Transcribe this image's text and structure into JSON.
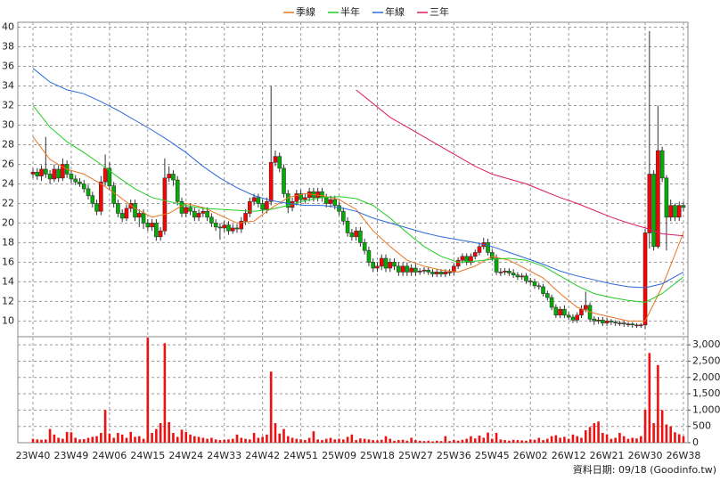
{
  "chart_data": {
    "type": "candlestick",
    "legend": "top",
    "grid": true,
    "up_color": "#ff0000",
    "down_color": "#00b000",
    "categories": [
      "23W40",
      null,
      null,
      null,
      null,
      null,
      null,
      null,
      null,
      "23W49",
      null,
      null,
      null,
      null,
      null,
      null,
      null,
      null,
      "24W06",
      null,
      null,
      null,
      null,
      null,
      null,
      null,
      null,
      "24W15",
      null,
      null,
      null,
      null,
      null,
      null,
      null,
      null,
      "24W24",
      null,
      null,
      null,
      null,
      null,
      null,
      null,
      null,
      "24W33",
      null,
      null,
      null,
      null,
      null,
      null,
      null,
      null,
      "24W42",
      null,
      null,
      null,
      null,
      null,
      null,
      null,
      null,
      "24W51",
      null,
      null,
      null,
      null,
      null,
      null,
      null,
      null,
      "25W09",
      null,
      null,
      null,
      null,
      null,
      null,
      null,
      null,
      "25W18",
      null,
      null,
      null,
      null,
      null,
      null,
      null,
      null,
      "25W27",
      null,
      null,
      null,
      null,
      null,
      null,
      null,
      null,
      "25W36",
      null,
      null,
      null,
      null,
      null,
      null,
      null,
      null,
      "25W45",
      null,
      null,
      null,
      null,
      null,
      null,
      null,
      null,
      "26W02",
      null,
      null,
      null,
      null,
      null,
      null,
      null,
      null,
      "26W12",
      null,
      null,
      null,
      null,
      null,
      null,
      null,
      null,
      "26W21",
      null,
      null,
      null,
      null,
      null,
      null,
      null,
      null,
      "26W30",
      null,
      null,
      null,
      null,
      null,
      null,
      null,
      null,
      "26W38"
    ],
    "open": [
      25.0,
      25.2,
      24.8,
      25.5,
      25.0,
      24.5,
      25.5,
      24.6,
      26.0,
      25.0,
      24.5,
      24.2,
      24.0,
      23.5,
      22.8,
      22.0,
      21.2,
      24.2,
      25.6,
      23.8,
      22.0,
      21.0,
      20.5,
      21.5,
      22.0,
      20.6,
      21.0,
      20.0,
      19.6,
      20.0,
      18.6,
      19.2,
      24.6,
      25.0,
      24.4,
      22.2,
      21.0,
      21.6,
      21.2,
      20.6,
      21.0,
      21.2,
      20.6,
      20.0,
      19.6,
      19.5,
      19.8,
      19.2,
      19.5,
      19.4,
      20.2,
      21.0,
      22.2,
      22.6,
      22.0,
      21.4,
      22.2,
      26.2,
      26.8,
      25.6,
      23.0,
      21.6,
      22.2,
      23.0,
      22.4,
      22.6,
      23.2,
      22.6,
      23.2,
      22.6,
      22.0,
      22.4,
      21.8,
      21.2,
      20.2,
      19.0,
      18.6,
      19.2,
      18.0,
      17.2,
      16.0,
      15.4,
      15.6,
      16.4,
      15.4,
      16.0,
      15.6,
      15.0,
      15.6,
      15.0,
      15.4,
      15.0,
      15.1,
      15.2,
      15.0,
      14.8,
      15.0,
      14.8,
      15.0,
      15.0,
      15.6,
      16.2,
      16.6,
      16.0,
      16.6,
      17.0,
      17.6,
      18.0,
      17.0,
      16.4,
      15.0,
      15.0,
      15.1,
      14.9,
      14.7,
      14.5,
      14.6,
      14.1,
      14.0,
      13.6,
      13.5,
      12.8,
      12.4,
      11.4,
      10.6,
      11.2,
      10.6,
      10.4,
      10.1,
      10.6,
      11.2,
      11.6,
      10.2,
      10.0,
      10.1,
      9.8,
      10.0,
      9.9,
      9.8,
      9.8,
      9.7,
      9.7,
      9.6,
      9.6,
      9.6,
      19.0,
      25.0,
      17.6,
      27.4,
      24.6,
      20.6,
      21.8,
      20.6,
      21.8
    ],
    "high": [
      25.6,
      25.6,
      25.9,
      28.8,
      25.4,
      26.0,
      25.9,
      26.6,
      26.4,
      25.4,
      24.9,
      24.6,
      24.4,
      23.9,
      23.2,
      22.4,
      24.8,
      27.0,
      26.2,
      24.2,
      22.4,
      21.4,
      21.9,
      22.4,
      22.4,
      21.4,
      21.4,
      20.4,
      20.4,
      20.4,
      19.6,
      26.6,
      25.8,
      25.4,
      24.8,
      22.6,
      21.9,
      22.0,
      21.6,
      21.4,
      21.6,
      21.6,
      21.0,
      20.4,
      20.0,
      20.2,
      20.2,
      19.9,
      19.9,
      20.6,
      21.4,
      22.6,
      23.0,
      23.0,
      22.4,
      22.6,
      34.0,
      27.4,
      27.2,
      26.0,
      23.4,
      22.6,
      23.4,
      23.4,
      23.0,
      23.6,
      23.6,
      23.6,
      23.6,
      23.0,
      22.8,
      22.8,
      22.2,
      21.6,
      20.6,
      19.4,
      19.6,
      19.6,
      18.4,
      17.6,
      16.4,
      16.0,
      16.8,
      16.8,
      16.4,
      16.4,
      16.0,
      16.0,
      16.0,
      15.8,
      15.8,
      15.4,
      15.5,
      15.5,
      15.3,
      15.3,
      15.3,
      15.3,
      15.3,
      15.9,
      16.5,
      16.9,
      16.9,
      16.9,
      17.3,
      17.9,
      18.5,
      18.4,
      17.3,
      16.8,
      15.4,
      15.4,
      15.4,
      15.3,
      15.0,
      14.9,
      14.9,
      14.4,
      14.3,
      13.9,
      13.8,
      13.1,
      12.7,
      11.7,
      11.5,
      11.6,
      10.9,
      10.7,
      10.9,
      11.6,
      13.0,
      11.9,
      10.5,
      10.4,
      10.4,
      10.3,
      10.2,
      10.1,
      10.0,
      10.0,
      9.9,
      9.9,
      9.8,
      9.8,
      19.4,
      39.6,
      25.4,
      32.0,
      27.8,
      24.9,
      22.4,
      22.0,
      22.2,
      22.2
    ],
    "low": [
      24.6,
      24.4,
      24.3,
      24.6,
      24.0,
      24.2,
      24.2,
      24.3,
      24.6,
      24.1,
      23.9,
      23.7,
      23.1,
      22.4,
      21.6,
      20.8,
      20.8,
      23.8,
      23.4,
      21.6,
      20.6,
      20.1,
      20.2,
      21.1,
      20.2,
      19.6,
      19.4,
      19.2,
      19.2,
      18.2,
      18.2,
      18.8,
      24.2,
      23.8,
      21.8,
      20.6,
      20.6,
      20.8,
      20.2,
      20.2,
      20.6,
      20.2,
      19.6,
      19.2,
      18.3,
      19.1,
      18.8,
      18.9,
      19.0,
      19.0,
      19.8,
      20.6,
      21.8,
      21.6,
      21.0,
      21.0,
      21.8,
      25.8,
      25.2,
      22.6,
      21.0,
      21.2,
      21.8,
      22.0,
      22.0,
      22.2,
      22.2,
      22.2,
      22.2,
      21.6,
      21.6,
      21.4,
      20.8,
      19.8,
      18.6,
      18.2,
      18.2,
      17.6,
      16.8,
      15.6,
      15.0,
      15.0,
      15.2,
      15.0,
      15.0,
      15.2,
      14.6,
      14.6,
      14.6,
      14.6,
      14.6,
      14.7,
      14.8,
      14.7,
      14.5,
      14.5,
      14.5,
      14.5,
      14.6,
      14.7,
      15.3,
      15.9,
      15.7,
      15.7,
      16.3,
      16.7,
      17.3,
      16.7,
      16.1,
      14.7,
      14.6,
      14.7,
      14.6,
      14.4,
      14.2,
      14.2,
      13.8,
      13.7,
      13.3,
      13.2,
      12.5,
      12.1,
      11.1,
      10.3,
      10.3,
      10.3,
      10.1,
      9.8,
      9.8,
      10.3,
      10.9,
      9.9,
      9.6,
      9.7,
      9.5,
      9.5,
      9.6,
      9.5,
      9.5,
      9.4,
      9.4,
      9.3,
      9.3,
      9.3,
      9.2,
      17.4,
      17.2,
      17.4,
      24.2,
      17.2,
      20.2,
      20.2,
      20.2,
      21.2
    ],
    "close": [
      25.2,
      24.8,
      25.5,
      25.0,
      24.5,
      25.5,
      24.6,
      26.0,
      25.0,
      24.5,
      24.2,
      24.0,
      23.5,
      22.8,
      22.0,
      21.2,
      24.2,
      25.6,
      23.8,
      22.0,
      21.0,
      20.5,
      21.5,
      22.0,
      20.6,
      21.0,
      20.0,
      19.6,
      20.0,
      18.6,
      19.2,
      24.6,
      25.0,
      24.4,
      22.2,
      21.0,
      21.6,
      21.2,
      20.6,
      21.0,
      21.2,
      20.6,
      20.0,
      19.6,
      19.5,
      19.8,
      19.2,
      19.5,
      19.4,
      20.2,
      21.0,
      22.2,
      22.6,
      22.0,
      21.4,
      22.2,
      26.2,
      26.8,
      25.6,
      23.0,
      21.6,
      22.2,
      23.0,
      22.4,
      22.6,
      23.2,
      22.6,
      23.2,
      22.6,
      22.0,
      22.4,
      21.8,
      21.2,
      20.2,
      19.0,
      18.6,
      19.2,
      18.0,
      17.2,
      16.0,
      15.4,
      15.6,
      16.4,
      15.4,
      16.0,
      15.6,
      15.0,
      15.6,
      15.0,
      15.4,
      15.0,
      15.1,
      15.2,
      15.0,
      14.8,
      15.0,
      14.8,
      15.0,
      15.0,
      15.6,
      16.2,
      16.6,
      16.0,
      16.6,
      17.0,
      17.6,
      18.0,
      17.0,
      16.4,
      15.0,
      15.0,
      15.1,
      14.9,
      14.7,
      14.5,
      14.6,
      14.1,
      14.0,
      13.6,
      13.5,
      12.8,
      12.4,
      11.4,
      10.6,
      11.2,
      10.6,
      10.4,
      10.1,
      10.6,
      11.2,
      11.6,
      10.2,
      10.0,
      10.1,
      9.8,
      10.0,
      9.9,
      9.8,
      9.8,
      9.7,
      9.7,
      9.6,
      9.6,
      9.6,
      19.0,
      25.0,
      17.6,
      27.4,
      24.6,
      20.6,
      21.8,
      20.6,
      21.8,
      21.6
    ],
    "ylim": [
      8.4,
      40.5
    ],
    "yticks": [
      10,
      12,
      14,
      16,
      18,
      20,
      22,
      24,
      26,
      28,
      30,
      32,
      34,
      36,
      38,
      40
    ],
    "series": [
      {
        "name": "季線",
        "color": "#e8741e",
        "x": [
          0,
          4,
          8,
          12,
          16,
          20,
          24,
          28,
          32,
          36,
          40,
          44,
          48,
          52,
          56,
          60,
          64,
          68,
          72,
          76,
          80,
          84,
          88,
          92,
          96,
          100,
          104,
          108,
          112,
          116,
          120,
          124,
          128,
          132,
          136,
          140,
          144,
          148,
          153
        ],
        "values": [
          28.8,
          26.5,
          25.5,
          25.0,
          24.0,
          22.8,
          21.5,
          20.6,
          21.0,
          22.0,
          21.6,
          20.8,
          20.0,
          20.2,
          21.5,
          22.6,
          23.0,
          22.8,
          22.4,
          21.4,
          19.2,
          17.6,
          16.2,
          15.6,
          15.2,
          15.0,
          15.6,
          16.6,
          16.2,
          15.3,
          14.4,
          12.8,
          11.4,
          10.8,
          10.4,
          10.0,
          10.0,
          13.5,
          19.0
        ]
      },
      {
        "name": "半年",
        "color": "#22cc22",
        "x": [
          0,
          4,
          8,
          12,
          16,
          20,
          24,
          28,
          32,
          36,
          40,
          44,
          48,
          52,
          56,
          60,
          64,
          68,
          72,
          76,
          80,
          84,
          88,
          92,
          96,
          100,
          104,
          108,
          112,
          116,
          120,
          124,
          128,
          132,
          136,
          140,
          144,
          148,
          153
        ],
        "values": [
          32.0,
          29.8,
          28.3,
          27.2,
          26.0,
          24.7,
          23.5,
          22.6,
          22.2,
          21.8,
          21.5,
          21.4,
          21.3,
          21.2,
          21.4,
          21.8,
          22.3,
          22.6,
          22.7,
          22.5,
          21.8,
          20.5,
          19.0,
          17.6,
          16.6,
          16.0,
          16.1,
          16.3,
          16.4,
          16.2,
          15.6,
          14.6,
          13.6,
          12.8,
          12.4,
          12.1,
          11.9,
          12.8,
          14.5
        ]
      },
      {
        "name": "年線",
        "color": "#2a68d8",
        "x": [
          0,
          4,
          8,
          12,
          16,
          20,
          24,
          28,
          32,
          36,
          40,
          44,
          48,
          52,
          56,
          60,
          64,
          68,
          72,
          76,
          80,
          84,
          88,
          92,
          96,
          100,
          104,
          108,
          112,
          116,
          120,
          124,
          128,
          132,
          136,
          140,
          144,
          148,
          153
        ],
        "values": [
          35.8,
          34.4,
          33.6,
          33.2,
          32.4,
          31.5,
          30.5,
          29.5,
          28.4,
          27.2,
          25.8,
          24.6,
          23.6,
          22.8,
          22.3,
          22.0,
          21.8,
          21.8,
          21.6,
          21.2,
          20.5,
          20.0,
          19.5,
          19.0,
          18.6,
          18.3,
          18.0,
          17.6,
          17.0,
          16.4,
          15.8,
          15.1,
          14.6,
          14.2,
          13.8,
          13.5,
          13.4,
          13.8,
          15.0
        ]
      },
      {
        "name": "三年",
        "color": "#dd1a66",
        "x": [
          76,
          80,
          84,
          88,
          92,
          96,
          100,
          104,
          108,
          112,
          116,
          120,
          124,
          128,
          132,
          136,
          140,
          144,
          148,
          153
        ],
        "values": [
          33.6,
          32.2,
          30.8,
          29.8,
          28.8,
          27.8,
          26.8,
          25.8,
          25.0,
          24.5,
          24.0,
          23.3,
          22.6,
          22.0,
          21.3,
          20.6,
          20.0,
          19.5,
          18.9,
          18.7
        ]
      }
    ],
    "volume": {
      "color": "#ee1111",
      "values": [
        120,
        100,
        90,
        100,
        420,
        250,
        150,
        120,
        330,
        320,
        150,
        100,
        110,
        150,
        180,
        200,
        300,
        1000,
        280,
        150,
        300,
        250,
        150,
        330,
        180,
        200,
        120,
        3220,
        300,
        420,
        600,
        3050,
        630,
        300,
        180,
        400,
        330,
        250,
        200,
        180,
        150,
        120,
        150,
        100,
        80,
        90,
        100,
        120,
        250,
        150,
        120,
        100,
        300,
        150,
        180,
        250,
        2180,
        600,
        280,
        420,
        200,
        150,
        120,
        100,
        80,
        150,
        350,
        100,
        80,
        120,
        150,
        100,
        120,
        100,
        180,
        250,
        80,
        130,
        120,
        100,
        80,
        70,
        90,
        200,
        120,
        60,
        80,
        90,
        60,
        150,
        80,
        60,
        50,
        60,
        40,
        60,
        50,
        200,
        50,
        80,
        60,
        90,
        120,
        200,
        130,
        220,
        150,
        310,
        120,
        300,
        100,
        80,
        60,
        90,
        80,
        70,
        60,
        100,
        90,
        150,
        80,
        120,
        200,
        230,
        150,
        180,
        120,
        250,
        200,
        150,
        380,
        480,
        600,
        650,
        300,
        250,
        120,
        150,
        300,
        200,
        120,
        150,
        130,
        200,
        1010,
        2750,
        600,
        2380,
        1000,
        560,
        500,
        320,
        260,
        200
      ],
      "ylim": [
        0,
        3250
      ],
      "yticks": [
        0,
        500,
        {
          "value": 1000,
          "label": "1,000"
        },
        {
          "value": 1500,
          "label": "1,500"
        },
        {
          "value": 2000,
          "label": "2,000"
        },
        {
          "value": 2500,
          "label": "2,500"
        },
        {
          "value": 3000,
          "label": "3,000"
        }
      ]
    },
    "footer": "資料日期: 09/18  (Goodinfo.tw)"
  }
}
